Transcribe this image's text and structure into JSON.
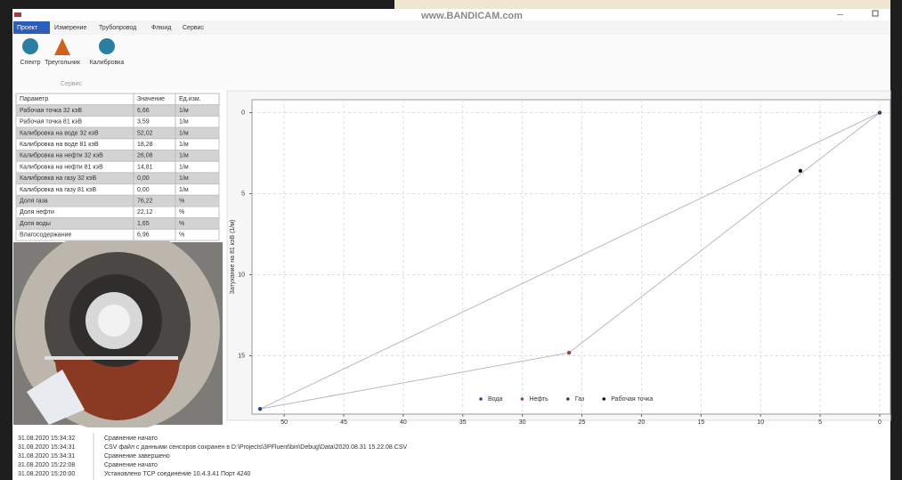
{
  "watermark": "www.BANDICAM.com",
  "menu": [
    "Проект",
    "Измерение",
    "Трубопровод",
    "Флюид",
    "Сервис"
  ],
  "toolbar": {
    "buttons": [
      "Спектр",
      "Треугольник",
      "Калибровка"
    ],
    "group": "Сервис"
  },
  "table": {
    "header": [
      "Параметр",
      "Значение",
      "Ед.изм."
    ],
    "rows": [
      [
        "Рабочая точка 32 кэВ",
        "6,66",
        "1/м"
      ],
      [
        "Рабочая точка 81 кэВ",
        "3,59",
        "1/м"
      ],
      [
        "Калибровка на воде 32 кэВ",
        "52,02",
        "1/м"
      ],
      [
        "Калибровка на воде 81 кэВ",
        "18,28",
        "1/м"
      ],
      [
        "Калибровка на нефти 32 кэВ",
        "26,08",
        "1/м"
      ],
      [
        "Калибровка на нефти 81 кэВ",
        "14,81",
        "1/м"
      ],
      [
        "Калибровка на газу 32 кэВ",
        "0,00",
        "1/м"
      ],
      [
        "Калибровка на газу 81 кэВ",
        "0,00",
        "1/м"
      ],
      [
        "Доля газа",
        "76,22",
        "%"
      ],
      [
        "Доля нефти",
        "22,12",
        "%"
      ],
      [
        "Доля воды",
        "1,65",
        "%"
      ],
      [
        "Влагосодержание",
        "6,96",
        "%"
      ]
    ]
  },
  "chart_data": {
    "type": "scatter",
    "y_label": "Затухание на 81 кэВ (1/м)",
    "xlim": [
      52.7,
      -0.9
    ],
    "ylim": [
      18.6,
      -0.8
    ],
    "xticks": [
      50,
      45,
      40,
      35,
      30,
      25,
      20,
      15,
      10,
      5,
      0
    ],
    "yticks": [
      0,
      5,
      10,
      15
    ],
    "grid": true,
    "legend": "bottom",
    "triangle_color": "#b8b8c8",
    "series": [
      {
        "name": "Вода",
        "color": "#2b3f9e",
        "x": [
          52.02
        ],
        "values": [
          18.28
        ]
      },
      {
        "name": "Нефть",
        "color": "#b03a3a",
        "x": [
          26.08
        ],
        "values": [
          14.81
        ]
      },
      {
        "name": "Газ",
        "color": "#3a3a5a",
        "x": [
          0
        ],
        "values": [
          0
        ]
      },
      {
        "name": "Рабочая точка",
        "color": "#111111",
        "x": [
          6.66
        ],
        "values": [
          3.59
        ]
      }
    ]
  },
  "log": [
    [
      "31.08.2020 15:34:32",
      "Сравнение начато"
    ],
    [
      "31.08.2020 15:34:31",
      "CSV файл с данными сенсоров сохранен в D:\\Projects\\3PFluent\\bin\\Debug\\Data\\2020.08.31 15.22.08.CSV"
    ],
    [
      "31.08.2020 15:34:31",
      "Сравнение завершено"
    ],
    [
      "31.08.2020 15:22:08",
      "Сравнение начато"
    ],
    [
      "31.08.2020 15:20:00",
      "Установлено TCP соединение 10.4.3.41 Порт 4240"
    ]
  ]
}
